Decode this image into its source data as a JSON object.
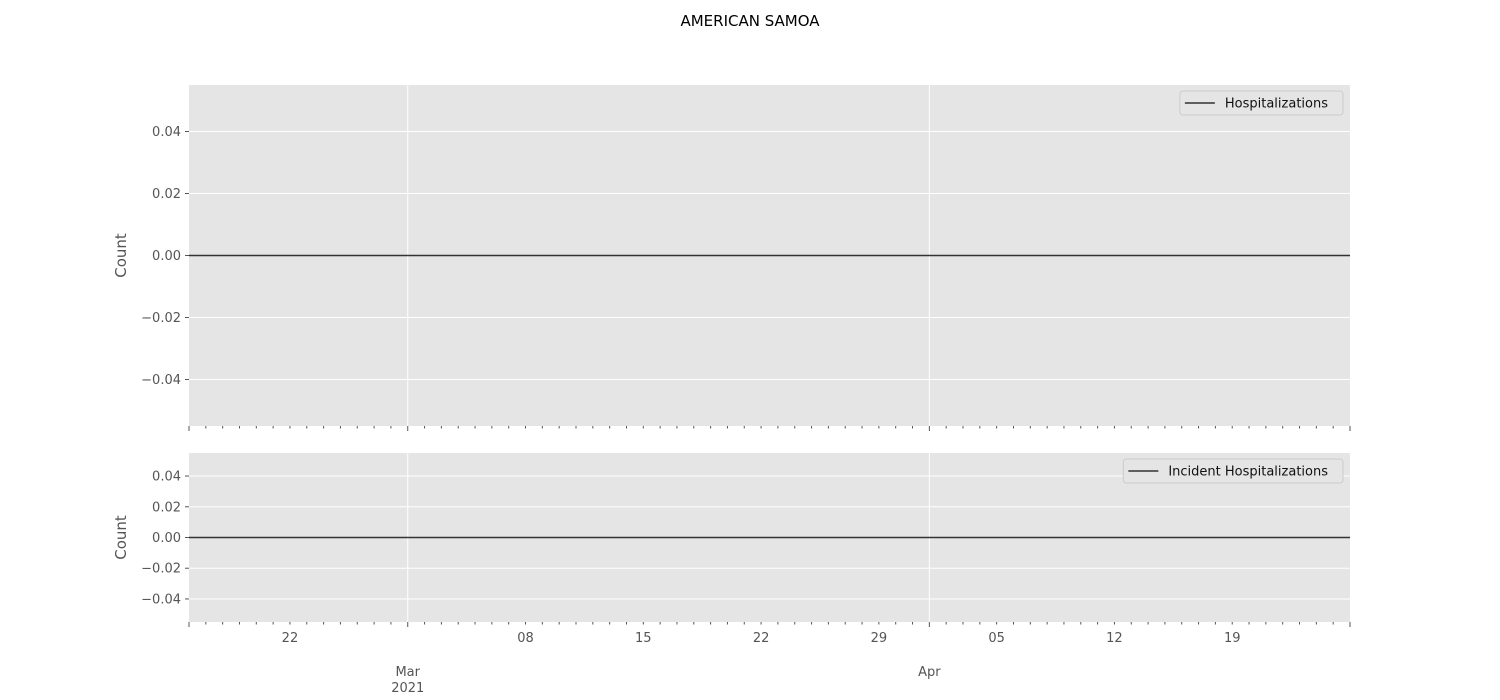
{
  "chart_data": [
    {
      "type": "line",
      "title": "AMERICAN SAMOA",
      "ylabel": "Count",
      "ylim": [
        -0.055,
        0.055
      ],
      "yticks": [
        0.04,
        0.02,
        0.0,
        -0.02,
        -0.04
      ],
      "ytick_labels": [
        "0.04",
        "0.02",
        "0.00",
        "−0.02",
        "−0.04"
      ],
      "grid": true,
      "legend_position": "top-right",
      "series": [
        {
          "name": "Hospitalizations",
          "color": "#333333",
          "x": [
            "2021-02-16",
            "2021-04-26"
          ],
          "y": [
            0,
            0
          ]
        }
      ]
    },
    {
      "type": "line",
      "ylabel": "Count",
      "ylim": [
        -0.055,
        0.055
      ],
      "yticks": [
        0.04,
        0.02,
        0.0,
        -0.02,
        -0.04
      ],
      "ytick_labels": [
        "0.04",
        "0.02",
        "0.00",
        "−0.02",
        "−0.04"
      ],
      "grid": true,
      "legend_position": "top-right",
      "xlim": [
        "2021-02-16",
        "2021-04-26"
      ],
      "x_minor_tick_labels": [
        {
          "date": "2021-02-22",
          "label": "22"
        },
        {
          "date": "2021-03-08",
          "label": "08"
        },
        {
          "date": "2021-03-15",
          "label": "15"
        },
        {
          "date": "2021-03-22",
          "label": "22"
        },
        {
          "date": "2021-03-29",
          "label": "29"
        },
        {
          "date": "2021-04-05",
          "label": "05"
        },
        {
          "date": "2021-04-12",
          "label": "12"
        },
        {
          "date": "2021-04-19",
          "label": "19"
        }
      ],
      "x_major_tick_labels": [
        {
          "date": "2021-03-01",
          "label": "Mar",
          "sublabel": "2021"
        },
        {
          "date": "2021-04-01",
          "label": "Apr",
          "sublabel": ""
        }
      ],
      "series": [
        {
          "name": "Incident Hospitalizations",
          "color": "#333333",
          "x": [
            "2021-02-16",
            "2021-04-26"
          ],
          "y": [
            0,
            0
          ]
        }
      ]
    }
  ]
}
